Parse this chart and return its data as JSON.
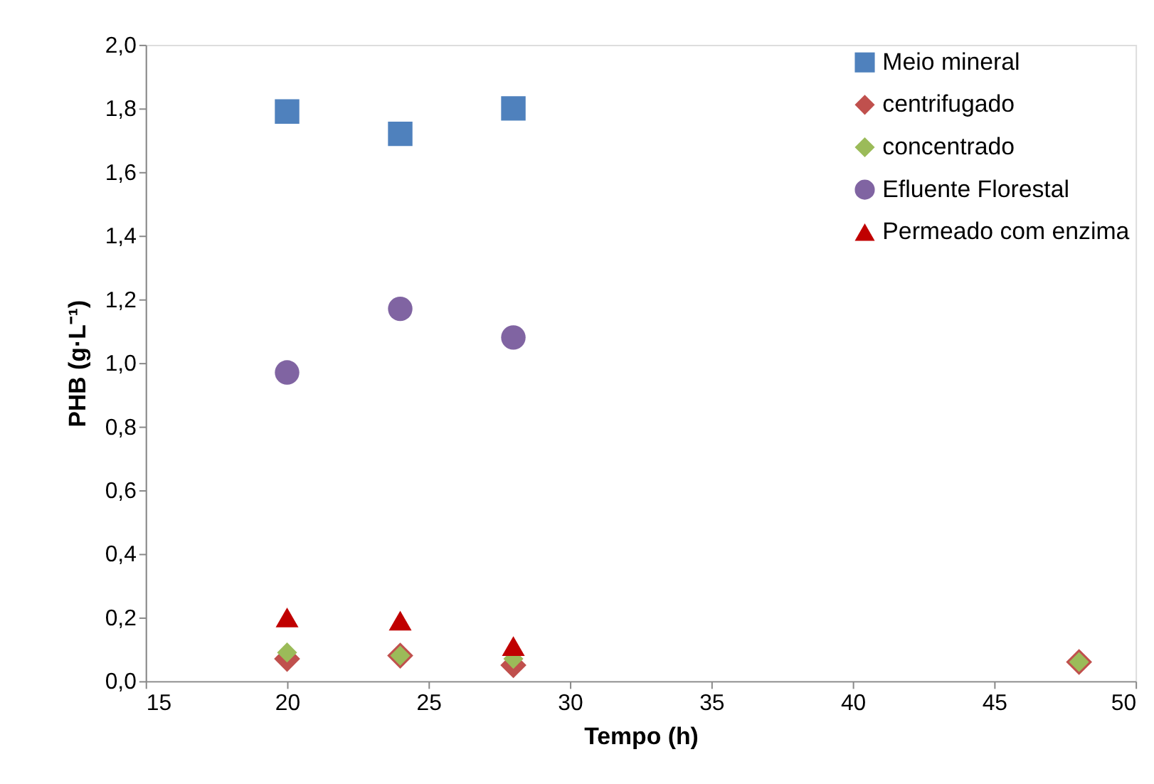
{
  "chart_data": {
    "type": "scatter",
    "xlabel": "Tempo (h)",
    "ylabel": "PHB (g·L⁻¹)",
    "xlim": [
      15,
      50
    ],
    "xticks": [
      15,
      20,
      25,
      30,
      35,
      40,
      45,
      50
    ],
    "ylim": [
      0,
      2
    ],
    "yticks": [
      {
        "value": 0,
        "label": "0,0"
      },
      {
        "value": 0.2,
        "label": "0,2"
      },
      {
        "value": 0.4,
        "label": "0,4"
      },
      {
        "value": 0.6,
        "label": "0,6"
      },
      {
        "value": 0.8,
        "label": "0,8"
      },
      {
        "value": 1.0,
        "label": "1,0"
      },
      {
        "value": 1.2,
        "label": "1,2"
      },
      {
        "value": 1.4,
        "label": "1,4"
      },
      {
        "value": 1.6,
        "label": "1,6"
      },
      {
        "value": 1.8,
        "label": "1,8"
      },
      {
        "value": 2.0,
        "label": "2,0"
      }
    ],
    "grid": false,
    "legend": "top right",
    "series": [
      {
        "name": "Meio mineral",
        "color": "#4f81bd",
        "marker": "square",
        "x": [
          20,
          24,
          28
        ],
        "values": [
          1.79,
          1.72,
          1.8
        ]
      },
      {
        "name": "centrifugado",
        "color": "#c0504d",
        "marker": "diamond",
        "x": [
          20,
          24,
          28,
          48
        ],
        "values": [
          0.07,
          0.08,
          0.05,
          0.06
        ]
      },
      {
        "name": "concentrado",
        "color": "#9bbb59",
        "marker": "diamond",
        "x": [
          20,
          24,
          28,
          48
        ],
        "values": [
          0.09,
          0.08,
          0.07,
          0.06
        ]
      },
      {
        "name": "Efluente Florestal",
        "color": "#8064a2",
        "marker": "circle",
        "x": [
          20,
          24,
          28
        ],
        "values": [
          0.97,
          1.17,
          1.08
        ]
      },
      {
        "name": "Permeado com enzima",
        "color": "#c00000",
        "marker": "triangle",
        "x": [
          20,
          24,
          28
        ],
        "values": [
          0.2,
          0.19,
          0.11
        ]
      }
    ]
  }
}
